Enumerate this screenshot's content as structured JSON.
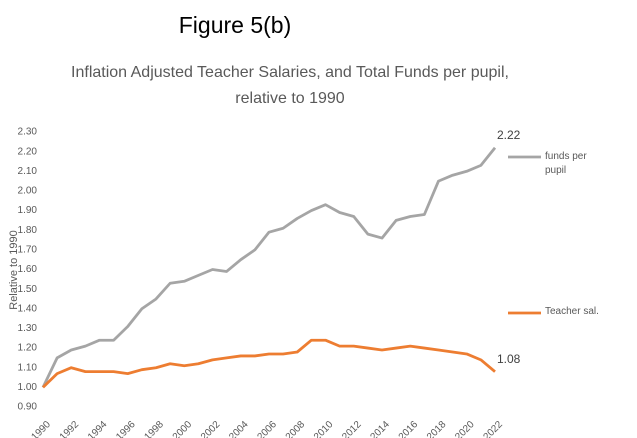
{
  "header": "Figure 5(b)",
  "chart_data": {
    "type": "line",
    "title": "Inflation Adjusted Teacher Salaries, and Total Funds per pupil, relative to 1990",
    "y_label": "Relative to 1990",
    "x": [
      1990,
      1991,
      1992,
      1993,
      1994,
      1995,
      1996,
      1997,
      1998,
      1999,
      2000,
      2001,
      2002,
      2003,
      2004,
      2005,
      2006,
      2007,
      2008,
      2009,
      2010,
      2011,
      2012,
      2013,
      2014,
      2015,
      2016,
      2017,
      2018,
      2019,
      2020,
      2021,
      2022
    ],
    "xlim": [
      1990,
      2022
    ],
    "xticks": [
      1990,
      1992,
      1994,
      1996,
      1998,
      2000,
      2002,
      2004,
      2006,
      2008,
      2010,
      2012,
      2014,
      2016,
      2018,
      2020,
      2022
    ],
    "ylim": [
      0.9,
      2.3
    ],
    "yticks": [
      {
        "value": 0.9,
        "label": "0.90"
      },
      {
        "value": 1,
        "label": "1.00"
      },
      {
        "value": 1.1,
        "label": "1.10"
      },
      {
        "value": 1.2,
        "label": "1.20"
      },
      {
        "value": 1.3,
        "label": "1.30"
      },
      {
        "value": 1.4,
        "label": "1.40"
      },
      {
        "value": 1.5,
        "label": "1.50"
      },
      {
        "value": 1.6,
        "label": "1.60"
      },
      {
        "value": 1.7,
        "label": "1.70"
      },
      {
        "value": 1.8,
        "label": "1.80"
      },
      {
        "value": 1.9,
        "label": "1.90"
      },
      {
        "value": 2,
        "label": "2.00"
      },
      {
        "value": 2.1,
        "label": "2.10"
      },
      {
        "value": 2.2,
        "label": "2.20"
      },
      {
        "value": 2.3,
        "label": "2.30"
      }
    ],
    "grid": false,
    "series": [
      {
        "name": "funds per pupil",
        "color": "#a5a5a5",
        "values": [
          1.0,
          1.15,
          1.19,
          1.21,
          1.24,
          1.24,
          1.31,
          1.4,
          1.45,
          1.53,
          1.54,
          1.57,
          1.6,
          1.59,
          1.65,
          1.7,
          1.79,
          1.81,
          1.86,
          1.9,
          1.93,
          1.89,
          1.87,
          1.78,
          1.76,
          1.85,
          1.87,
          1.88,
          2.05,
          2.08,
          2.1,
          2.13,
          2.22
        ]
      },
      {
        "name": "Teacher sal.",
        "color": "#ed7d31",
        "values": [
          1.0,
          1.07,
          1.1,
          1.08,
          1.08,
          1.08,
          1.07,
          1.09,
          1.1,
          1.12,
          1.11,
          1.12,
          1.14,
          1.15,
          1.16,
          1.16,
          1.17,
          1.17,
          1.18,
          1.24,
          1.24,
          1.21,
          1.21,
          1.2,
          1.19,
          1.2,
          1.21,
          1.2,
          1.19,
          1.18,
          1.17,
          1.14,
          1.08
        ]
      }
    ]
  }
}
